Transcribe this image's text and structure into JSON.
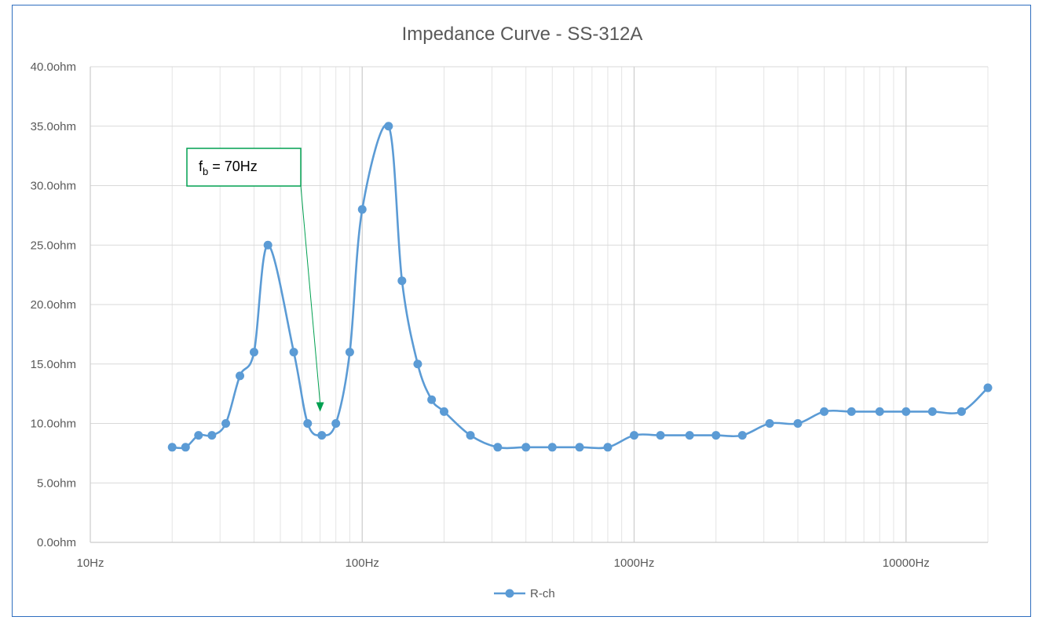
{
  "chart_data": {
    "type": "line",
    "title": "Impedance Curve - SS-312A",
    "x_scale": "log",
    "xlim": [
      10,
      20000
    ],
    "ylim": [
      0,
      40
    ],
    "x_ticks": [
      {
        "value": 10,
        "label": "10Hz"
      },
      {
        "value": 100,
        "label": "100Hz"
      },
      {
        "value": 1000,
        "label": "1000Hz"
      },
      {
        "value": 10000,
        "label": "10000Hz"
      }
    ],
    "y_ticks": [
      {
        "value": 0,
        "label": "0.0ohm"
      },
      {
        "value": 5,
        "label": "5.0ohm"
      },
      {
        "value": 10,
        "label": "10.0ohm"
      },
      {
        "value": 15,
        "label": "15.0ohm"
      },
      {
        "value": 20,
        "label": "20.0ohm"
      },
      {
        "value": 25,
        "label": "25.0ohm"
      },
      {
        "value": 30,
        "label": "30.0ohm"
      },
      {
        "value": 35,
        "label": "35.0ohm"
      },
      {
        "value": 40,
        "label": "40.0ohm"
      }
    ],
    "grid": true,
    "legend_position": "bottom",
    "series": [
      {
        "name": "R-ch",
        "color": "#5b9bd5",
        "points": [
          {
            "x": 20,
            "y": 8
          },
          {
            "x": 22.4,
            "y": 8
          },
          {
            "x": 25,
            "y": 9
          },
          {
            "x": 28,
            "y": 9
          },
          {
            "x": 31.5,
            "y": 10
          },
          {
            "x": 35.5,
            "y": 14
          },
          {
            "x": 40,
            "y": 16
          },
          {
            "x": 45,
            "y": 25
          },
          {
            "x": 56,
            "y": 16
          },
          {
            "x": 63,
            "y": 10
          },
          {
            "x": 71,
            "y": 9
          },
          {
            "x": 80,
            "y": 10
          },
          {
            "x": 90,
            "y": 16
          },
          {
            "x": 100,
            "y": 28
          },
          {
            "x": 125,
            "y": 35
          },
          {
            "x": 140,
            "y": 22
          },
          {
            "x": 160,
            "y": 15
          },
          {
            "x": 180,
            "y": 12
          },
          {
            "x": 200,
            "y": 11
          },
          {
            "x": 250,
            "y": 9
          },
          {
            "x": 315,
            "y": 8
          },
          {
            "x": 400,
            "y": 8
          },
          {
            "x": 500,
            "y": 8
          },
          {
            "x": 630,
            "y": 8
          },
          {
            "x": 800,
            "y": 8
          },
          {
            "x": 1000,
            "y": 9
          },
          {
            "x": 1250,
            "y": 9
          },
          {
            "x": 1600,
            "y": 9
          },
          {
            "x": 2000,
            "y": 9
          },
          {
            "x": 2500,
            "y": 9
          },
          {
            "x": 3150,
            "y": 10
          },
          {
            "x": 4000,
            "y": 10
          },
          {
            "x": 5000,
            "y": 11
          },
          {
            "x": 6300,
            "y": 11
          },
          {
            "x": 8000,
            "y": 11
          },
          {
            "x": 10000,
            "y": 11
          },
          {
            "x": 12500,
            "y": 11
          },
          {
            "x": 16000,
            "y": 11
          },
          {
            "x": 20000,
            "y": 13
          }
        ]
      }
    ],
    "annotation": {
      "text_main": "f",
      "text_sub": "b",
      "text_rest": " = 70Hz",
      "target_x": 70,
      "target_y": 10,
      "color": "#00a050"
    }
  }
}
